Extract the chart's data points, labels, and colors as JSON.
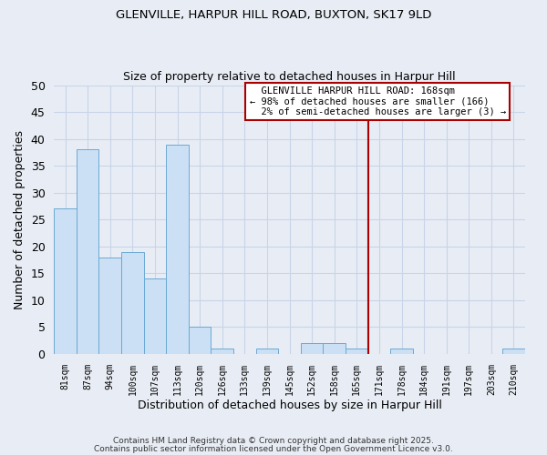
{
  "title1": "GLENVILLE, HARPUR HILL ROAD, BUXTON, SK17 9LD",
  "title2": "Size of property relative to detached houses in Harpur Hill",
  "xlabel": "Distribution of detached houses by size in Harpur Hill",
  "ylabel": "Number of detached properties",
  "categories": [
    "81sqm",
    "87sqm",
    "94sqm",
    "100sqm",
    "107sqm",
    "113sqm",
    "120sqm",
    "126sqm",
    "133sqm",
    "139sqm",
    "145sqm",
    "152sqm",
    "158sqm",
    "165sqm",
    "171sqm",
    "178sqm",
    "184sqm",
    "191sqm",
    "197sqm",
    "203sqm",
    "210sqm"
  ],
  "values": [
    27,
    38,
    18,
    19,
    14,
    39,
    5,
    1,
    0,
    1,
    0,
    2,
    2,
    1,
    0,
    1,
    0,
    0,
    0,
    0,
    1
  ],
  "bar_color": "#cce0f5",
  "bar_edge_color": "#6aaad4",
  "grid_color": "#c8d4e8",
  "background_color": "#e8edf5",
  "vline_x_index": 13.5,
  "vline_color": "#aa0000",
  "annotation_text": "  GLENVILLE HARPUR HILL ROAD: 168sqm\n← 98% of detached houses are smaller (166)\n  2% of semi-detached houses are larger (3) →",
  "annotation_box_color": "#ffffff",
  "annotation_box_edge": "#aa0000",
  "footer1": "Contains HM Land Registry data © Crown copyright and database right 2025.",
  "footer2": "Contains public sector information licensed under the Open Government Licence v3.0.",
  "ylim": [
    0,
    50
  ],
  "yticks": [
    0,
    5,
    10,
    15,
    20,
    25,
    30,
    35,
    40,
    45,
    50
  ]
}
